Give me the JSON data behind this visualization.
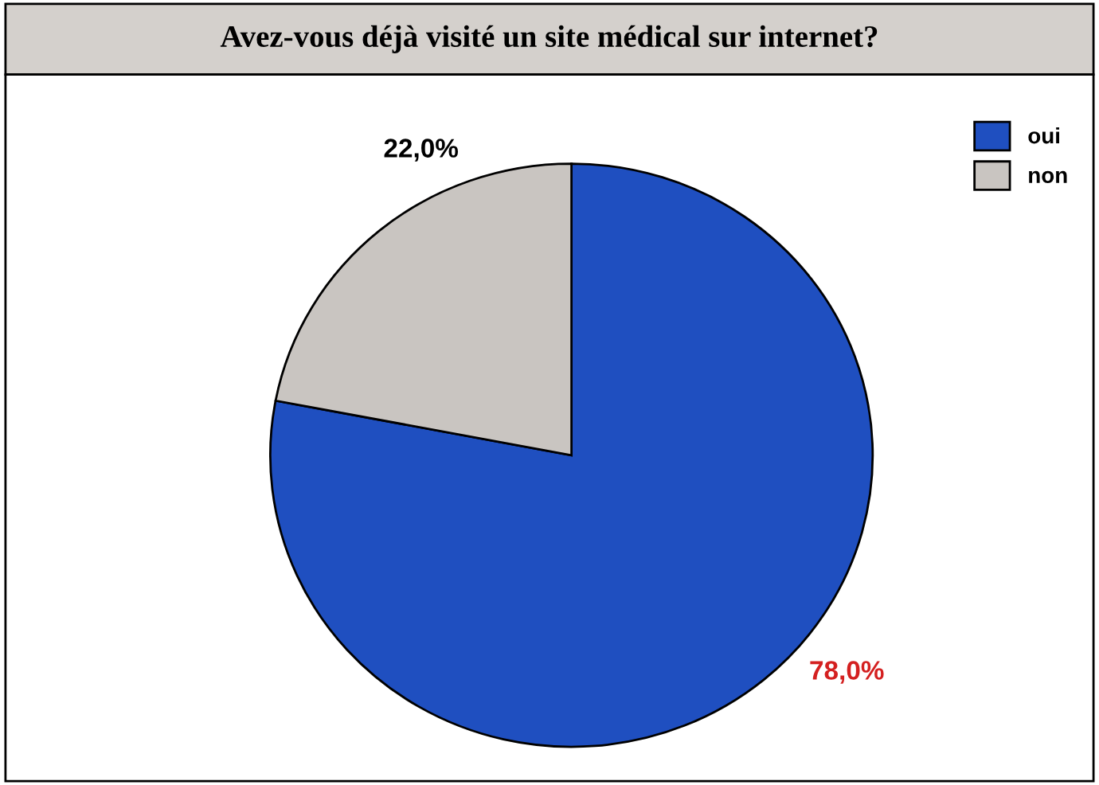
{
  "chart_data": {
    "type": "pie",
    "title": "Avez-vous déjà visité un site médical sur internet?",
    "categories": [
      "oui",
      "non"
    ],
    "values": [
      78,
      22
    ],
    "colors": [
      "#1f4fc0",
      "#c9c5c1"
    ],
    "value_labels": [
      "78,0%",
      "22,0%"
    ],
    "legend": "top right"
  }
}
